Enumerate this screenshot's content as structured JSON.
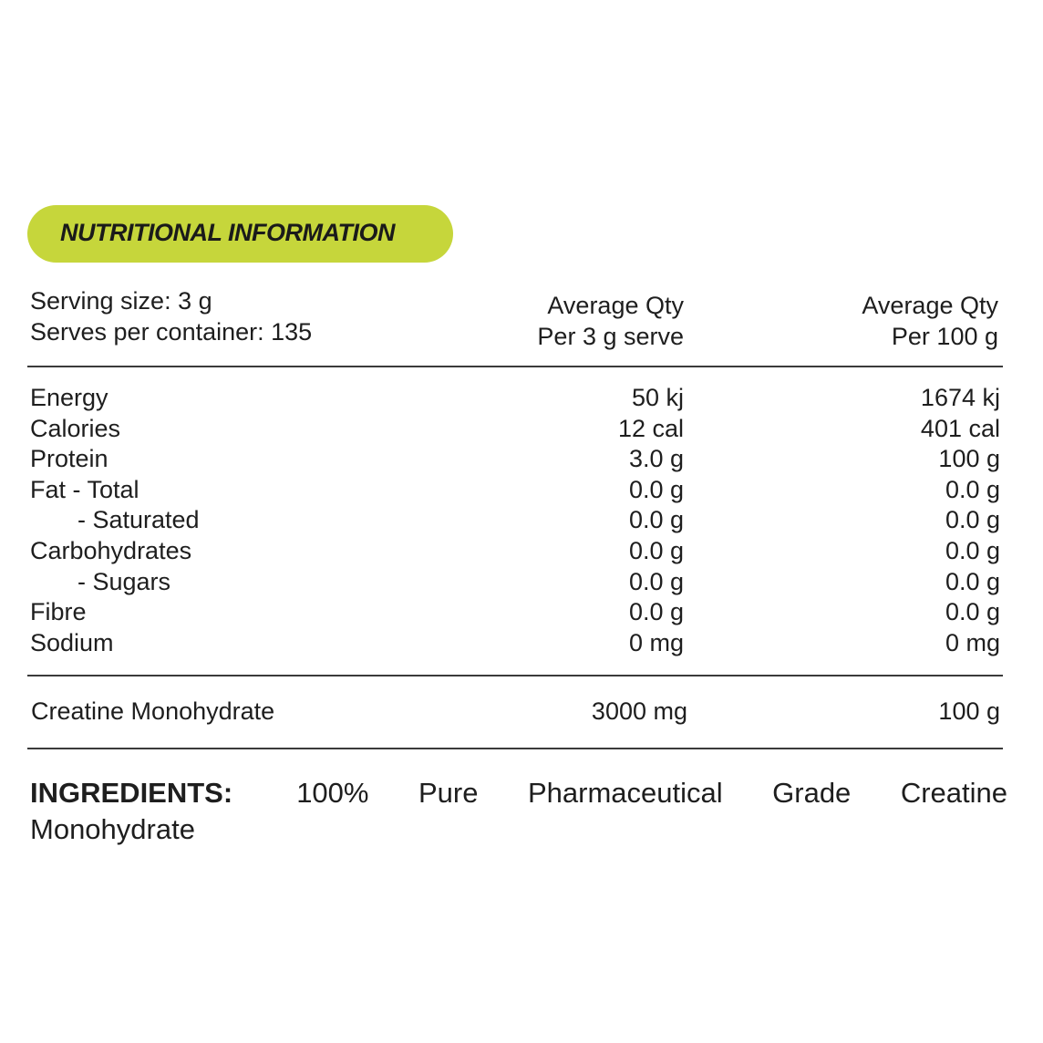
{
  "header": {
    "badge": "NUTRITIONAL INFORMATION"
  },
  "serving": {
    "size": "Serving size:  3 g",
    "serves": "Serves per container: 135"
  },
  "columns": [
    {
      "line1": "Average Qty",
      "line2": "Per 3 g serve"
    },
    {
      "line1": "Average Qty",
      "line2": "Per 100 g"
    }
  ],
  "table": {
    "rows": [
      [
        "Energy",
        "50 kj",
        "1674 kj"
      ],
      [
        "Calories",
        "12 cal",
        "401 cal"
      ],
      [
        "Protein",
        "3.0 g",
        "100 g"
      ],
      [
        "Fat - Total",
        "0.0 g",
        "0.0 g"
      ],
      [
        "- Saturated",
        "0.0 g",
        "0.0 g"
      ],
      [
        "Carbohydrates",
        "0.0 g",
        "0.0 g"
      ],
      [
        "- Sugars",
        "0.0 g",
        "0.0 g"
      ],
      [
        "Fibre",
        "0.0 g",
        "0.0 g"
      ],
      [
        "Sodium",
        "0 mg",
        "0 mg"
      ]
    ]
  },
  "active": [
    "Creatine Monohydrate",
    "3000 mg",
    "100 g"
  ],
  "ingredients": {
    "label": "INGREDIENTS:",
    "lines": [
      "100% Pure Pharmaceutical Grade Creatine",
      "Monohydrate"
    ]
  }
}
